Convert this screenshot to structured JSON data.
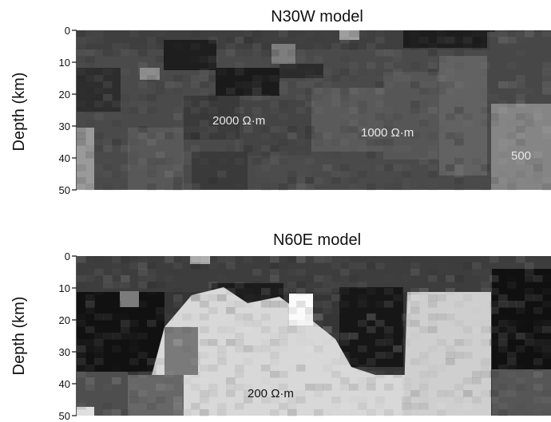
{
  "panels": [
    {
      "title": "N30W model",
      "ylabel": "Depth (km)",
      "yticks": [
        "0",
        "10",
        "20",
        "30",
        "40",
        "50"
      ],
      "annotations": [
        "2000 Ω·m",
        "1000 Ω·m",
        "500"
      ],
      "shading": "mostly dark",
      "texture_seed": 11
    },
    {
      "title": "N60E model",
      "ylabel": "Depth (km)",
      "yticks": [
        "0",
        "10",
        "20",
        "30",
        "40",
        "50"
      ],
      "annotations": [
        "200 Ω·m"
      ],
      "shading": "dark top, light lower body",
      "texture_seed": 29
    }
  ],
  "colors": {
    "background": "#ffffff",
    "text": "#111111",
    "annotation": "#e8e8e8",
    "axis": "#111111"
  }
}
